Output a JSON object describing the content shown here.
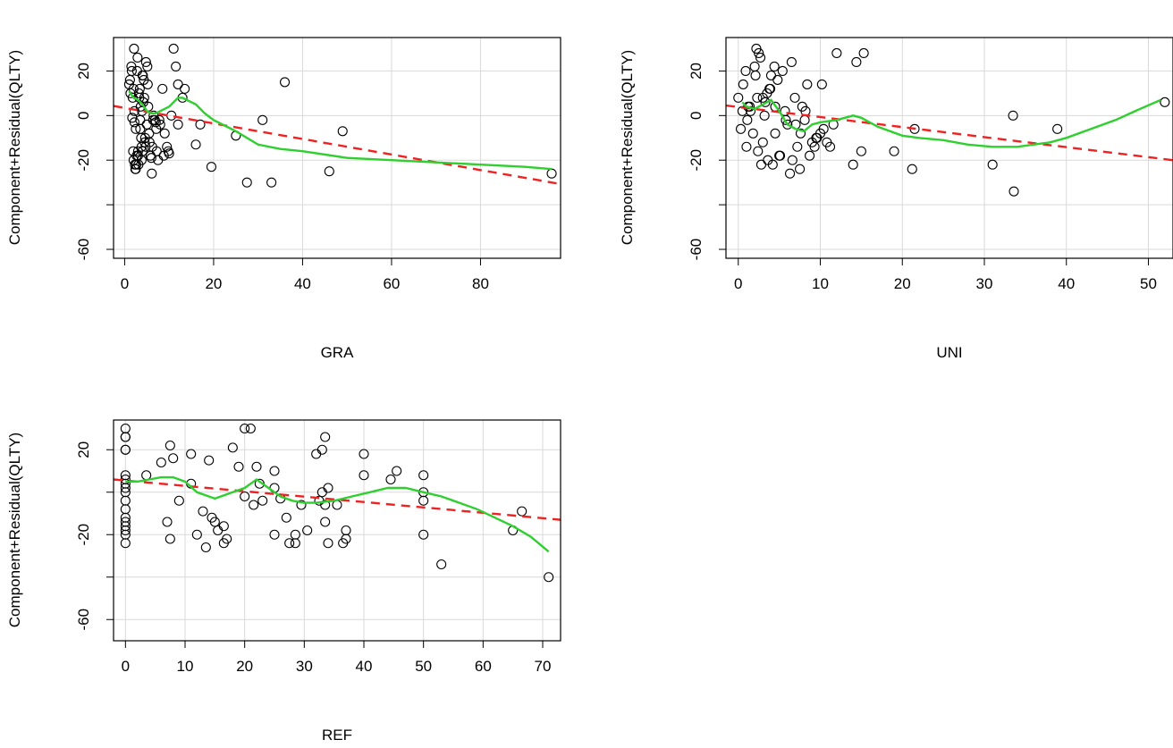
{
  "colors": {
    "points": "#000000",
    "smooth": "#2fcf2f",
    "fit": "#ee2222",
    "grid": "#d9d9d9"
  },
  "chart_data": [
    {
      "type": "scatter",
      "title": "",
      "xlabel": "GRA",
      "ylabel": "Component+Residual(QLTY)",
      "xlim": [
        -2.5,
        98
      ],
      "ylim": [
        -64,
        35
      ],
      "xticks": [
        "0",
        "20",
        "40",
        "60",
        "80"
      ],
      "yticks": [
        "20",
        "0",
        "-20",
        "",
        "-60"
      ],
      "grid": true,
      "x": [
        1,
        1.2,
        1.5,
        1.8,
        2,
        2.2,
        2.5,
        2.8,
        3,
        3.2,
        3.5,
        3.8,
        4,
        4.2,
        4.5,
        4.8,
        5,
        5.2,
        5.5,
        1.3,
        1.7,
        2.3,
        2.7,
        3.3,
        3.7,
        4.3,
        4.7,
        5.3,
        6,
        6.5,
        7,
        7.5,
        8,
        8.5,
        9,
        9.5,
        10,
        10.5,
        11,
        11.5,
        12,
        13,
        2.4,
        3.1,
        3.6,
        4.4,
        5.8,
        6.2,
        6.8,
        7.2,
        2.1,
        2.9,
        3.4,
        4.1,
        1.9,
        2.6,
        3.9,
        4.6,
        5.1,
        5.6,
        6.1,
        7.1,
        7.8,
        8.8,
        9.8,
        2,
        2.5,
        3,
        3.5,
        4,
        6.4,
        1.6,
        2.2,
        3.8,
        12,
        13.5,
        16,
        17,
        19.5,
        25,
        27.5,
        31,
        33,
        36,
        46,
        49,
        96
      ],
      "y": [
        14,
        16,
        22,
        8,
        12,
        2,
        -6,
        20,
        -16,
        10,
        -2,
        -20,
        18,
        6,
        -12,
        24,
        -4,
        14,
        -8,
        10,
        -1,
        -22,
        -18,
        8,
        -10,
        16,
        -14,
        4,
        -19,
        0,
        -3,
        -20,
        -4,
        12,
        -8,
        -14,
        -17,
        0,
        30,
        22,
        -4,
        8,
        -24,
        -22,
        4,
        8,
        -18,
        -14,
        -2,
        -16,
        30,
        26,
        12,
        18,
        -16,
        -22,
        2,
        -10,
        22,
        -12,
        -26,
        -6,
        -2,
        -18,
        -16,
        -20,
        -24,
        -18,
        -6,
        -16,
        -2,
        20,
        -3,
        -14,
        14,
        12,
        -13,
        -4,
        -23,
        -9,
        -30,
        -2,
        -30,
        15,
        -25,
        -7,
        -26
      ],
      "fit_line": {
        "x": [
          -2.5,
          98
        ],
        "y": [
          4.3,
          -30.7
        ]
      },
      "smooth_line": {
        "x": [
          1,
          2,
          3,
          4,
          5,
          6,
          7,
          8,
          9,
          10,
          11,
          12,
          13,
          14,
          16,
          18,
          20,
          25,
          30,
          35,
          40,
          50,
          60,
          70,
          80,
          90,
          96
        ],
        "y": [
          11,
          8,
          7,
          5,
          2,
          1,
          1,
          2,
          3,
          4,
          6,
          8,
          8,
          7,
          5,
          1,
          -2,
          -7,
          -13,
          -15,
          -16,
          -19,
          -20,
          -21,
          -22,
          -23,
          -24
        ]
      }
    },
    {
      "type": "scatter",
      "title": "",
      "xlabel": "UNI",
      "ylabel": "Component+Residual(QLTY)",
      "xlim": [
        -1.5,
        53
      ],
      "ylim": [
        -64,
        35
      ],
      "xticks": [
        "0",
        "10",
        "20",
        "30",
        "40",
        "50"
      ],
      "yticks": [
        "20",
        "0",
        "-20",
        "",
        "-60"
      ],
      "grid": true,
      "x": [
        0,
        0.3,
        0.6,
        0.9,
        1.2,
        1.5,
        1.8,
        2.1,
        2.4,
        2.7,
        3,
        3.3,
        3.6,
        3.9,
        4.2,
        4.5,
        4.8,
        5.1,
        5.4,
        5.7,
        6,
        6.3,
        6.6,
        6.9,
        7.2,
        7.5,
        7.8,
        8.1,
        8.4,
        8.7,
        9,
        9.3,
        9.6,
        10,
        10.4,
        10.8,
        11.2,
        11.6,
        12,
        14,
        14.4,
        15,
        15.3,
        19,
        21.2,
        21.5,
        31,
        33.5,
        33.6,
        38.9,
        52,
        2,
        2.2,
        2.5,
        3,
        3.5,
        4,
        4.5,
        1,
        1.4,
        2.8,
        3.2,
        3.8,
        4.4,
        5,
        5.8,
        6.5,
        7,
        7.6,
        8.2,
        9.5,
        10.2,
        0.5,
        1.1,
        2.3
      ],
      "y": [
        8,
        -6,
        14,
        20,
        4,
        2,
        -8,
        18,
        -16,
        26,
        -12,
        6,
        -20,
        12,
        -22,
        -8,
        16,
        -18,
        20,
        2,
        -4,
        -26,
        -20,
        8,
        -14,
        -24,
        4,
        -2,
        14,
        -18,
        -12,
        -14,
        -10,
        -8,
        -6,
        -12,
        -14,
        -4,
        28,
        -22,
        24,
        -16,
        28,
        -16,
        -24,
        -6,
        -22,
        0,
        -34,
        -6,
        6,
        22,
        30,
        28,
        8,
        10,
        18,
        4,
        -14,
        4,
        -22,
        0,
        12,
        22,
        -18,
        -2,
        24,
        -4,
        -8,
        2,
        -10,
        14,
        2,
        -2,
        8
      ],
      "fit_line": {
        "x": [
          -1.5,
          53
        ],
        "y": [
          4.5,
          -20
        ]
      },
      "smooth_line": {
        "x": [
          0.5,
          1,
          2,
          3,
          4,
          5,
          6,
          7,
          8,
          9,
          10,
          12,
          14,
          15,
          17,
          20,
          22,
          25,
          28,
          31,
          34,
          36,
          38,
          40,
          43,
          46,
          49,
          51.5
        ],
        "y": [
          6,
          4,
          3,
          5,
          7,
          2,
          -4,
          -6,
          -7,
          -4,
          -3,
          -2,
          0,
          -1,
          -5,
          -9,
          -10,
          -11,
          -13,
          -14,
          -14,
          -13,
          -12,
          -10,
          -6,
          -2,
          3,
          7
        ]
      }
    },
    {
      "type": "scatter",
      "title": "",
      "xlabel": "REF",
      "ylabel": "Component+Residual(QLTY)",
      "xlim": [
        -2,
        73
      ],
      "ylim": [
        -70,
        34
      ],
      "xticks": [
        "0",
        "10",
        "20",
        "30",
        "40",
        "50",
        "60",
        "70"
      ],
      "yticks": [
        "20",
        "",
        "-20",
        "",
        "-60"
      ],
      "grid": true,
      "x": [
        0,
        0,
        0,
        0,
        0,
        0,
        0,
        0,
        0,
        0,
        0,
        0,
        0,
        0,
        0,
        0,
        0,
        0,
        3.5,
        6,
        7,
        7.5,
        7.5,
        8,
        9,
        11,
        11,
        12,
        13,
        13.5,
        14,
        14.5,
        15,
        15.5,
        16.5,
        16.5,
        17,
        18,
        19,
        20,
        20,
        21,
        21.5,
        22,
        22.5,
        23,
        25,
        25,
        25,
        26,
        27,
        27.5,
        28.5,
        28.5,
        29.5,
        30.5,
        32,
        32.5,
        33,
        33,
        33.5,
        33.5,
        33.5,
        34,
        34,
        35.5,
        36.5,
        37,
        37,
        40,
        40,
        44.5,
        45.5,
        50,
        50,
        50,
        50,
        53,
        65,
        66.5,
        71
      ],
      "y": [
        30,
        26,
        26,
        20,
        20,
        8,
        4,
        0,
        -4,
        -8,
        -12,
        -14,
        -16,
        -18,
        -20,
        -24,
        6,
        2,
        8,
        14,
        -14,
        22,
        -22,
        16,
        -4,
        4,
        18,
        -20,
        -9,
        -26,
        15,
        -12,
        -14,
        -18,
        -16,
        -24,
        -22,
        21,
        12,
        -2,
        30,
        30,
        -6,
        12,
        4,
        -4,
        10,
        2,
        -20,
        -3,
        -12,
        -24,
        -20,
        -24,
        -6,
        -18,
        18,
        -4,
        0,
        20,
        -14,
        -6,
        26,
        2,
        -24,
        -6,
        -24,
        -18,
        -22,
        8,
        18,
        6,
        10,
        8,
        -4,
        -20,
        0,
        -34,
        -18,
        -9,
        -40
      ],
      "fit_line": {
        "x": [
          -2,
          73
        ],
        "y": [
          6,
          -13
        ]
      },
      "smooth_line": {
        "x": [
          0,
          2,
          4,
          6,
          8,
          10,
          12,
          15,
          18,
          20,
          21,
          22,
          23,
          24,
          25,
          26,
          28,
          30,
          32,
          35,
          38,
          41,
          44,
          47,
          50,
          53,
          56,
          59,
          62,
          65,
          68,
          71
        ],
        "y": [
          5,
          5,
          6,
          7,
          7,
          5,
          0,
          -3,
          0,
          2,
          4,
          6,
          4,
          2,
          0,
          -2,
          -4,
          -5,
          -5,
          -4,
          -2,
          0,
          2,
          2,
          0,
          -2,
          -5,
          -8,
          -12,
          -16,
          -21,
          -28
        ]
      }
    }
  ]
}
